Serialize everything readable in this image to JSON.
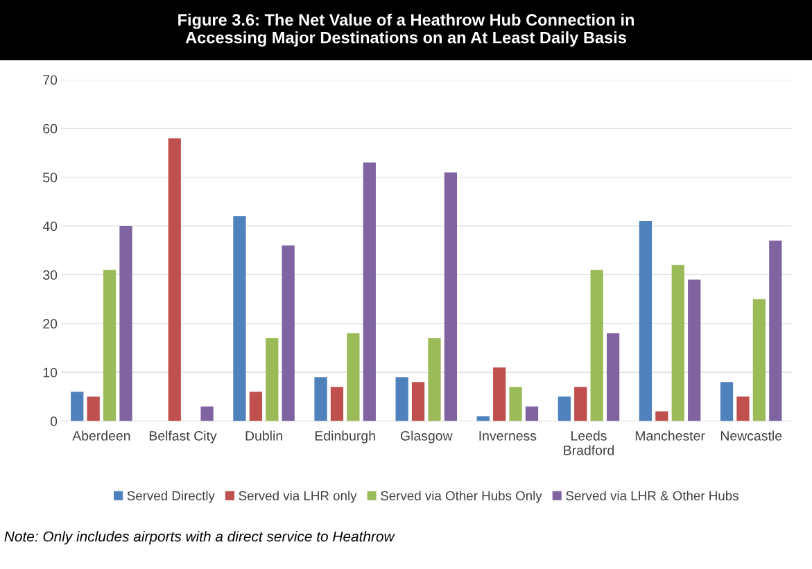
{
  "chart_data": {
    "type": "bar",
    "title": "Figure 3.6: The Net Value of a Heathrow Hub Connection in\nAccessing Major Destinations on an At Least Daily Basis",
    "categories": [
      "Aberdeen",
      "Belfast City",
      "Dublin",
      "Edinburgh",
      "Glasgow",
      "Inverness",
      "Leeds\nBradford",
      "Manchester",
      "Newcastle"
    ],
    "series": [
      {
        "name": "Served Directly",
        "color": "#4f81bd",
        "values": [
          6,
          0,
          42,
          9,
          9,
          1,
          5,
          41,
          8
        ]
      },
      {
        "name": "Served via LHR only",
        "color": "#c0504d",
        "values": [
          5,
          58,
          6,
          7,
          8,
          11,
          7,
          2,
          5
        ]
      },
      {
        "name": "Served via Other Hubs Only",
        "color": "#9bbb59",
        "values": [
          31,
          0,
          17,
          18,
          17,
          7,
          31,
          32,
          25
        ]
      },
      {
        "name": "Served via LHR & Other Hubs",
        "color": "#8064a2",
        "values": [
          40,
          3,
          36,
          53,
          51,
          3,
          18,
          29,
          37
        ]
      }
    ],
    "ylim": [
      0,
      70
    ],
    "yticks": [
      0,
      10,
      20,
      30,
      40,
      50,
      60,
      70
    ],
    "grid": "y",
    "legend": "bottom",
    "annotations": [
      "Note: Only includes airports with a direct service to Heathrow"
    ]
  }
}
